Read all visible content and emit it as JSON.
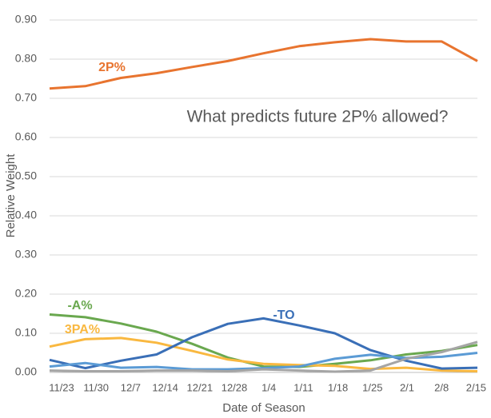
{
  "chart_data": {
    "type": "line",
    "annotation": "What predicts future 2P% allowed?",
    "x_label": "Date of Season",
    "y_label": "Relative Weight",
    "categories": [
      "11/23",
      "11/30",
      "12/7",
      "12/14",
      "12/21",
      "12/28",
      "1/4",
      "1/11",
      "1/18",
      "1/25",
      "2/1",
      "2/8",
      "2/15"
    ],
    "ylim": [
      0,
      0.9
    ],
    "yticks": [
      {
        "value": 0,
        "label": "0.00"
      },
      {
        "value": 0.1,
        "label": "0.10"
      },
      {
        "value": 0.2,
        "label": "0.20"
      },
      {
        "value": 0.3,
        "label": "0.30"
      },
      {
        "value": 0.4,
        "label": "0.40"
      },
      {
        "value": 0.5,
        "label": "0.50"
      },
      {
        "value": 0.6,
        "label": "0.60"
      },
      {
        "value": 0.7,
        "label": "0.70"
      },
      {
        "value": 0.8,
        "label": "0.80"
      },
      {
        "value": 0.9,
        "label": "0.90"
      }
    ],
    "grid": true,
    "series": [
      {
        "name": "2P%",
        "color": "#e8742f",
        "values": [
          0.725,
          0.731,
          0.752,
          0.764,
          0.78,
          0.795,
          0.815,
          0.833,
          0.843,
          0.851,
          0.845,
          0.845,
          0.795
        ]
      },
      {
        "name": "-A%",
        "color": "#6aa84f",
        "values": [
          0.148,
          0.141,
          0.125,
          0.104,
          0.073,
          0.038,
          0.015,
          0.014,
          0.022,
          0.031,
          0.046,
          0.055,
          0.07
        ]
      },
      {
        "name": "3PA%",
        "color": "#f9b840",
        "values": [
          0.066,
          0.085,
          0.088,
          0.076,
          0.055,
          0.033,
          0.022,
          0.019,
          0.017,
          0.009,
          0.012,
          0.005,
          0.003
        ]
      },
      {
        "name": "-TO",
        "color": "#3a6fb7",
        "values": [
          0.032,
          0.011,
          0.03,
          0.046,
          0.09,
          0.124,
          0.138,
          0.12,
          0.1,
          0.057,
          0.03,
          0.01,
          0.012
        ]
      },
      {
        "color": "#5b9bd5",
        "values": [
          0.015,
          0.024,
          0.012,
          0.014,
          0.008,
          0.008,
          0.011,
          0.015,
          0.035,
          0.045,
          0.037,
          0.04,
          0.05
        ]
      },
      {
        "color": "#a5a5a5",
        "values": [
          0.005,
          0.003,
          0.003,
          0.005,
          0.005,
          0.003,
          0.008,
          0.005,
          0.002,
          0.005,
          0.035,
          0.052,
          0.078
        ]
      }
    ]
  }
}
